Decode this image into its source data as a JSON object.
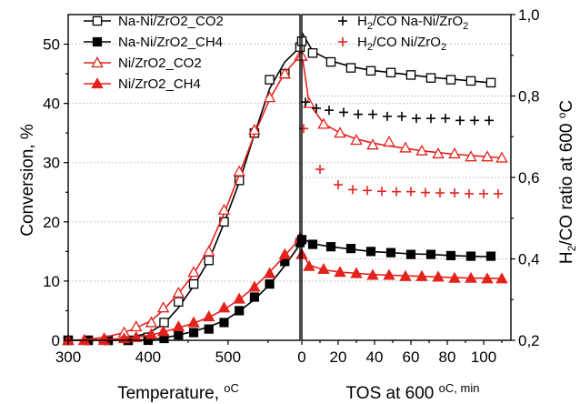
{
  "chart_data": [
    {
      "type": "line",
      "panel": "left",
      "xlabel": "Temperature, ",
      "xlabel_unit": "oC",
      "ylabel": "Conversion, %",
      "xlim": [
        300,
        590
      ],
      "ylim": [
        0,
        55
      ],
      "xticks": [
        300,
        400,
        500
      ],
      "yticks": [
        0,
        10,
        20,
        30,
        40,
        50
      ],
      "grid": "horizontal dotted",
      "legend": {
        "placement": "top-left",
        "entries": [
          {
            "label": "Na-Ni/ZrO2_CO2",
            "series": 0
          },
          {
            "label": "Na-Ni/ZrO2_CH4",
            "series": 1
          },
          {
            "label": "Ni/ZrO2_CO2",
            "series": 2
          },
          {
            "label": "Ni/ZrO2_CH4",
            "series": 3
          }
        ]
      },
      "series": [
        {
          "name": "Na-Ni/ZrO2_CO2",
          "color": "#000000",
          "marker": "open-square",
          "x": [
            300,
            325,
            350,
            375,
            400,
            420,
            438,
            457,
            476,
            495,
            514,
            533,
            552,
            571,
            590
          ],
          "y": [
            0,
            0,
            0,
            0,
            0.5,
            3,
            6.5,
            9.5,
            13.5,
            20,
            27,
            35,
            44,
            45,
            49.5
          ],
          "curve_y": [
            0,
            0,
            0.1,
            0.4,
            1.2,
            2.8,
            5.5,
            9.2,
            13.5,
            19.8,
            26.7,
            34.8,
            42.5,
            47,
            49.5
          ]
        },
        {
          "name": "Na-Ni/ZrO2_CH4",
          "color": "#000000",
          "marker": "filled-square",
          "x": [
            300,
            325,
            350,
            375,
            400,
            420,
            438,
            457,
            476,
            495,
            514,
            533,
            552,
            571,
            590
          ],
          "y": [
            0,
            0,
            0,
            0,
            0,
            0.3,
            0.9,
            1.3,
            1.9,
            3,
            5,
            7.3,
            9.5,
            13.3,
            16.5
          ],
          "curve_y": [
            0,
            0,
            0,
            0,
            0.1,
            0.4,
            0.9,
            1.5,
            2.3,
            3.3,
            4.9,
            6.9,
            9.4,
            12.6,
            16.2
          ]
        },
        {
          "name": "Ni/ZrO2_CO2",
          "color": "#e3221c",
          "marker": "open-triangle",
          "x": [
            300,
            320,
            345,
            370,
            385,
            404,
            419,
            438,
            457,
            476,
            495,
            514,
            533,
            552,
            571,
            590
          ],
          "y": [
            0,
            0,
            0.3,
            1.3,
            2.3,
            3,
            5.5,
            8,
            11.5,
            15,
            22,
            28.5,
            35.5,
            41,
            45,
            48
          ],
          "curve_y": [
            0,
            0.1,
            0.5,
            1.3,
            2.1,
            3.3,
            5.1,
            7.9,
            11.2,
            15.6,
            21.4,
            28,
            34.8,
            40.7,
            45.2,
            48
          ]
        },
        {
          "name": "Ni/ZrO2_CH4",
          "color": "#e3221c",
          "marker": "filled-triangle",
          "x": [
            300,
            320,
            345,
            370,
            385,
            404,
            419,
            438,
            457,
            476,
            495,
            514,
            533,
            552,
            571,
            590
          ],
          "y": [
            0,
            0,
            0,
            0.3,
            0.5,
            1,
            1.5,
            2.3,
            3,
            4,
            5.5,
            7,
            9,
            11.3,
            14.5,
            17.3
          ],
          "curve_y": [
            0,
            0,
            0.1,
            0.3,
            0.5,
            0.9,
            1.4,
            2.1,
            2.9,
            3.9,
            5.2,
            6.9,
            9,
            11.5,
            14.3,
            17.2
          ]
        }
      ]
    },
    {
      "type": "line",
      "panel": "right",
      "xlabel": "TOS at 600 ",
      "xlabel_unit": "oC, min",
      "ylabel": "H2/CO ratio at 600 °C",
      "xlim": [
        0,
        115
      ],
      "ylim_left": [
        0,
        55
      ],
      "ylim_right": [
        0.2,
        1.0
      ],
      "xticks": [
        0,
        20,
        40,
        60,
        80,
        100
      ],
      "yticks_right": [
        "0,2",
        "0,4",
        "0,6",
        "0,8",
        "1,0"
      ],
      "yticks_right_values": [
        0.2,
        0.4,
        0.6,
        0.8,
        1.0
      ],
      "grid": "horizontal dotted",
      "legend": {
        "placement": "top",
        "entries": [
          {
            "label_main": "H",
            "label_sub": "2",
            "label_mid": "/CO  Na-Ni/ZrO",
            "label_sub2": "2",
            "series": 4
          },
          {
            "label_main": "H",
            "label_sub": "2",
            "label_mid": "/CO  Ni/ZrO",
            "label_sub2": "2",
            "series": 5
          }
        ]
      },
      "series": [
        {
          "name": "Na-Ni/ZrO2_CO2",
          "axis": "left",
          "color": "#000000",
          "marker": "open-square",
          "x": [
            0,
            6,
            16,
            27,
            38,
            49,
            60,
            71,
            82,
            93,
            104
          ],
          "y": [
            50.5,
            48.5,
            47,
            46,
            45.5,
            45.2,
            44.8,
            44.3,
            44,
            43.8,
            43.5
          ],
          "curve_y": [
            52,
            48.8,
            47.2,
            46.2,
            45.6,
            45.2,
            44.8,
            44.4,
            44.1,
            43.8,
            43.5
          ]
        },
        {
          "name": "Na-Ni/ZrO2_CH4",
          "axis": "left",
          "color": "#000000",
          "marker": "filled-square",
          "x": [
            0,
            6,
            16,
            27,
            38,
            49,
            60,
            71,
            82,
            93,
            104
          ],
          "y": [
            17,
            16.2,
            15.8,
            15.5,
            15,
            14.8,
            14.5,
            14.5,
            14.3,
            14.2,
            14.2
          ],
          "curve_y": [
            17.2,
            16.3,
            15.8,
            15.4,
            15,
            14.8,
            14.6,
            14.5,
            14.3,
            14.2,
            14.1
          ]
        },
        {
          "name": "Ni/ZrO2_CO2",
          "axis": "left",
          "color": "#e3221c",
          "marker": "open-triangle",
          "x": [
            0,
            4,
            12,
            21,
            30,
            39,
            48,
            57,
            66,
            75,
            84,
            93,
            102,
            110
          ],
          "y": [
            48,
            40,
            36.5,
            35,
            33.8,
            33,
            33.5,
            32.5,
            32,
            31.5,
            31.5,
            31,
            31,
            30.8
          ],
          "curve_y": [
            48.5,
            40,
            36.6,
            35,
            34,
            33.3,
            32.8,
            32.4,
            32,
            31.7,
            31.4,
            31.2,
            31,
            30.8
          ]
        },
        {
          "name": "Ni/ZrO2_CH4",
          "axis": "left",
          "color": "#e3221c",
          "marker": "filled-triangle",
          "x": [
            0,
            4,
            12,
            21,
            30,
            39,
            48,
            57,
            66,
            75,
            84,
            93,
            102,
            110
          ],
          "y": [
            14.5,
            12.5,
            12,
            11.5,
            11.3,
            11,
            11,
            10.8,
            10.8,
            10.7,
            10.5,
            10.5,
            10.4,
            10.4
          ],
          "curve_y": [
            14.8,
            12.7,
            11.9,
            11.5,
            11.3,
            11.1,
            11,
            10.9,
            10.8,
            10.7,
            10.6,
            10.5,
            10.5,
            10.4
          ]
        },
        {
          "name": "H2/CO Na-Ni/ZrO2",
          "axis": "right",
          "color": "#000000",
          "marker": "plus",
          "x": [
            2,
            8,
            15,
            23,
            31,
            39,
            47,
            55,
            63,
            71,
            79,
            87,
            95,
            103
          ],
          "y": [
            0.785,
            0.77,
            0.765,
            0.76,
            0.755,
            0.755,
            0.75,
            0.75,
            0.745,
            0.745,
            0.745,
            0.74,
            0.74,
            0.74
          ]
        },
        {
          "name": "H2/CO Ni/ZrO2",
          "axis": "right",
          "color": "#e3221c",
          "marker": "plus",
          "x": [
            1,
            10,
            20,
            28,
            36,
            44,
            52,
            60,
            68,
            76,
            84,
            92,
            100,
            108
          ],
          "y": [
            0.72,
            0.62,
            0.582,
            0.57,
            0.568,
            0.566,
            0.565,
            0.565,
            0.563,
            0.562,
            0.562,
            0.56,
            0.56,
            0.56
          ]
        }
      ]
    }
  ]
}
